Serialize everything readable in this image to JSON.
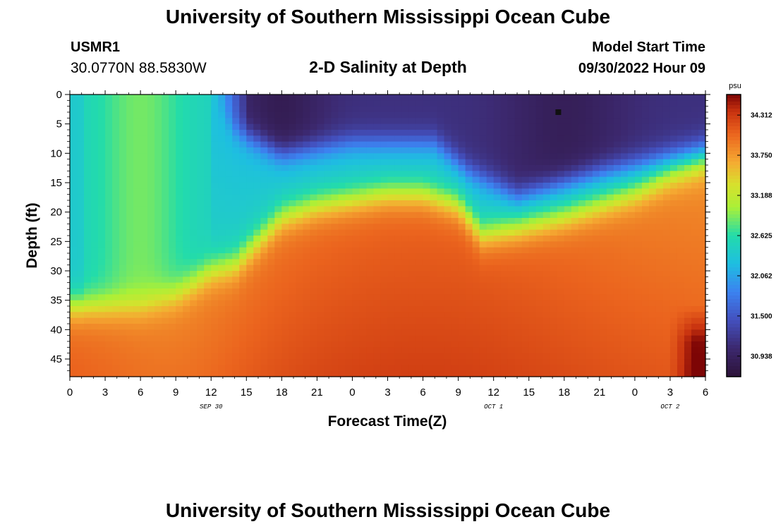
{
  "page": {
    "title": "University of Southern Mississippi Ocean Cube",
    "footer_title": "University of Southern Mississippi Ocean Cube",
    "station_id": "USMR1",
    "station_coords": "30.0770N  88.5830W",
    "subtitle": "2-D Salinity at Depth",
    "model_start_label": "Model Start Time",
    "model_start_value": "09/30/2022 Hour 09"
  },
  "chart_data": {
    "type": "heatmap",
    "title": "2-D Salinity at Depth",
    "xlabel": "Forecast Time(Z)",
    "ylabel": "Depth (ft)",
    "x_ticks": [
      "0",
      "3",
      "6",
      "9",
      "12",
      "15",
      "18",
      "21",
      "0",
      "3",
      "6",
      "9",
      "12",
      "15",
      "18",
      "21",
      "0",
      "3",
      "6"
    ],
    "x_hours_range": [
      0,
      54
    ],
    "date_labels": [
      {
        "text": "SEP 30",
        "hour": 12
      },
      {
        "text": "OCT 1",
        "hour": 36
      },
      {
        "text": "OCT 2",
        "hour": 51
      }
    ],
    "y_ticks": [
      "0",
      "5",
      "10",
      "15",
      "20",
      "25",
      "30",
      "35",
      "40",
      "45"
    ],
    "ylim": [
      0,
      48
    ],
    "colorbar": {
      "unit": "psu",
      "ticks": [
        "34.312",
        "33.750",
        "33.188",
        "32.625",
        "32.062",
        "31.500",
        "30.938"
      ],
      "range": [
        30.65,
        34.6
      ]
    },
    "marker": {
      "hour": 41.5,
      "depth": 3
    },
    "halocline_depth_ft": [
      {
        "hour": 0,
        "depth": 36
      },
      {
        "hour": 6,
        "depth": 36
      },
      {
        "hour": 9,
        "depth": 34
      },
      {
        "hour": 12,
        "depth": 30
      },
      {
        "hour": 14,
        "depth": 29
      },
      {
        "hour": 16,
        "depth": 25
      },
      {
        "hour": 18,
        "depth": 21
      },
      {
        "hour": 21,
        "depth": 19
      },
      {
        "hour": 24,
        "depth": 18
      },
      {
        "hour": 27,
        "depth": 17
      },
      {
        "hour": 30,
        "depth": 17
      },
      {
        "hour": 33,
        "depth": 19
      },
      {
        "hour": 35,
        "depth": 24
      },
      {
        "hour": 38,
        "depth": 23
      },
      {
        "hour": 42,
        "depth": 21
      },
      {
        "hour": 45,
        "depth": 19
      },
      {
        "hour": 48,
        "depth": 17
      },
      {
        "hour": 51,
        "depth": 14
      },
      {
        "hour": 54,
        "depth": 12
      }
    ],
    "surface_layer_top_depth_ft": [
      {
        "hour": 0,
        "depth": 0
      },
      {
        "hour": 12,
        "depth": 0
      },
      {
        "hour": 14,
        "depth": 6
      },
      {
        "hour": 18,
        "depth": 10
      },
      {
        "hour": 24,
        "depth": 8
      },
      {
        "hour": 31,
        "depth": 8
      },
      {
        "hour": 34,
        "depth": 13
      },
      {
        "hour": 38,
        "depth": 17
      },
      {
        "hour": 45,
        "depth": 13
      },
      {
        "hour": 54,
        "depth": 9
      }
    ]
  }
}
